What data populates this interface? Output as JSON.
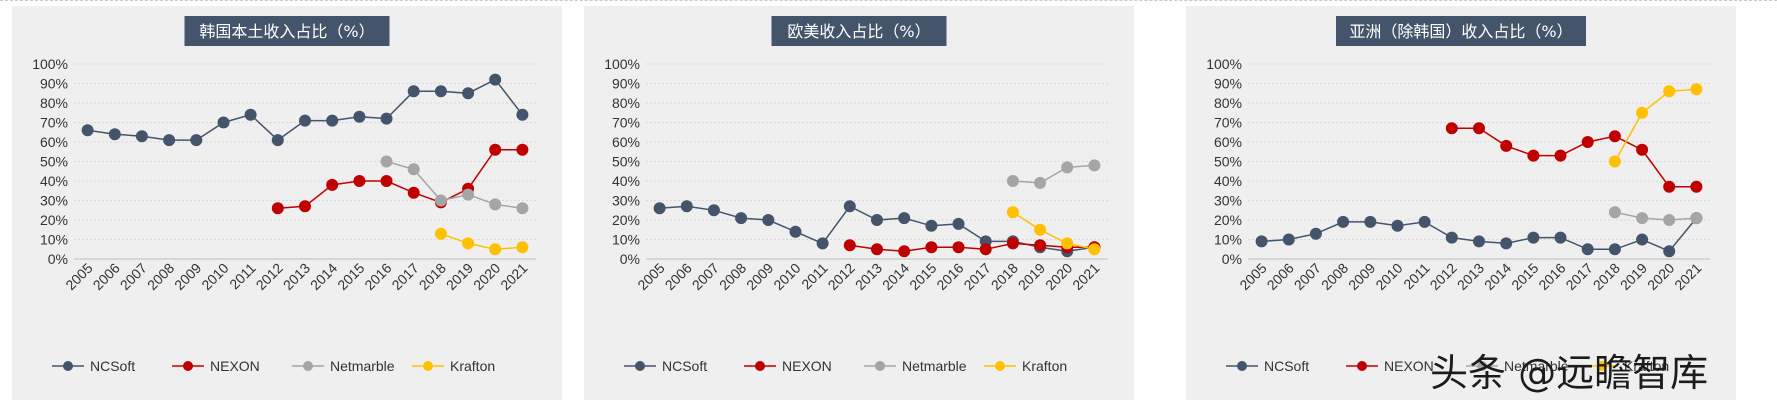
{
  "years": [
    "2005",
    "2006",
    "2007",
    "2008",
    "2009",
    "2010",
    "2011",
    "2012",
    "2013",
    "2014",
    "2015",
    "2016",
    "2017",
    "2018",
    "2019",
    "2020",
    "2021"
  ],
  "colors": {
    "NCSoft": "#44546a",
    "NEXON": "#c00000",
    "Netmarble": "#a5a5a5",
    "Krafton": "#ffc000",
    "title_bg": "#44546a",
    "title_text": "#ffffff"
  },
  "watermark": "头条 @远瞻智库",
  "chart_data": [
    {
      "type": "line",
      "title": "韩国本土收入占比（%）",
      "y_ticks": [
        "0%",
        "10%",
        "20%",
        "30%",
        "40%",
        "50%",
        "60%",
        "70%",
        "80%",
        "90%",
        "100%"
      ],
      "ylim": [
        0,
        100
      ],
      "x": [
        "2005",
        "2006",
        "2007",
        "2008",
        "2009",
        "2010",
        "2011",
        "2012",
        "2013",
        "2014",
        "2015",
        "2016",
        "2017",
        "2018",
        "2019",
        "2020",
        "2021"
      ],
      "legend_position": "bottom",
      "series": [
        {
          "name": "NCSoft",
          "values": [
            66,
            64,
            63,
            61,
            61,
            70,
            74,
            61,
            71,
            71,
            73,
            72,
            86,
            86,
            85,
            92,
            74
          ]
        },
        {
          "name": "NEXON",
          "values": [
            null,
            null,
            null,
            null,
            null,
            null,
            null,
            26,
            27,
            38,
            40,
            40,
            34,
            29,
            36,
            56,
            56
          ]
        },
        {
          "name": "Netmarble",
          "values": [
            null,
            null,
            null,
            null,
            null,
            null,
            null,
            null,
            null,
            null,
            null,
            50,
            46,
            30,
            33,
            28,
            26
          ]
        },
        {
          "name": "Krafton",
          "values": [
            null,
            null,
            null,
            null,
            null,
            null,
            null,
            null,
            null,
            null,
            null,
            null,
            null,
            13,
            8,
            5,
            6
          ]
        }
      ]
    },
    {
      "type": "line",
      "title": "欧美收入占比（%）",
      "y_ticks": [
        "0%",
        "10%",
        "20%",
        "30%",
        "40%",
        "50%",
        "60%",
        "70%",
        "80%",
        "90%",
        "100%"
      ],
      "ylim": [
        0,
        100
      ],
      "x": [
        "2005",
        "2006",
        "2007",
        "2008",
        "2009",
        "2010",
        "2011",
        "2012",
        "2013",
        "2014",
        "2015",
        "2016",
        "2017",
        "2018",
        "2019",
        "2020",
        "2021"
      ],
      "legend_position": "bottom",
      "series": [
        {
          "name": "NCSoft",
          "values": [
            26,
            27,
            25,
            21,
            20,
            14,
            8,
            27,
            20,
            21,
            17,
            18,
            9,
            9,
            6,
            4,
            6
          ]
        },
        {
          "name": "NEXON",
          "values": [
            null,
            null,
            null,
            null,
            null,
            null,
            null,
            7,
            5,
            4,
            6,
            6,
            5,
            8,
            7,
            6,
            6
          ]
        },
        {
          "name": "Netmarble",
          "values": [
            null,
            null,
            null,
            null,
            null,
            null,
            null,
            null,
            null,
            null,
            null,
            null,
            null,
            40,
            39,
            47,
            48
          ]
        },
        {
          "name": "Krafton",
          "values": [
            null,
            null,
            null,
            null,
            null,
            null,
            null,
            null,
            null,
            null,
            null,
            null,
            null,
            24,
            15,
            8,
            5
          ]
        }
      ]
    },
    {
      "type": "line",
      "title": "亚洲（除韩国）收入占比（%）",
      "y_ticks": [
        "0%",
        "10%",
        "20%",
        "30%",
        "40%",
        "50%",
        "60%",
        "70%",
        "80%",
        "90%",
        "100%"
      ],
      "ylim": [
        0,
        100
      ],
      "x": [
        "2005",
        "2006",
        "2007",
        "2008",
        "2009",
        "2010",
        "2011",
        "2012",
        "2013",
        "2014",
        "2015",
        "2016",
        "2017",
        "2018",
        "2019",
        "2020",
        "2021"
      ],
      "legend_position": "bottom",
      "series": [
        {
          "name": "NCSoft",
          "values": [
            9,
            10,
            13,
            19,
            19,
            17,
            19,
            11,
            9,
            8,
            11,
            11,
            5,
            5,
            10,
            4,
            21
          ]
        },
        {
          "name": "NEXON",
          "values": [
            null,
            null,
            null,
            null,
            null,
            null,
            null,
            67,
            67,
            58,
            53,
            53,
            60,
            63,
            56,
            37,
            37
          ]
        },
        {
          "name": "Netmarble",
          "values": [
            null,
            null,
            null,
            null,
            null,
            null,
            null,
            null,
            null,
            null,
            null,
            null,
            null,
            24,
            21,
            20,
            21
          ]
        },
        {
          "name": "Krafton",
          "values": [
            null,
            null,
            null,
            null,
            null,
            null,
            null,
            null,
            null,
            null,
            null,
            null,
            null,
            50,
            75,
            86,
            87
          ]
        }
      ]
    }
  ]
}
